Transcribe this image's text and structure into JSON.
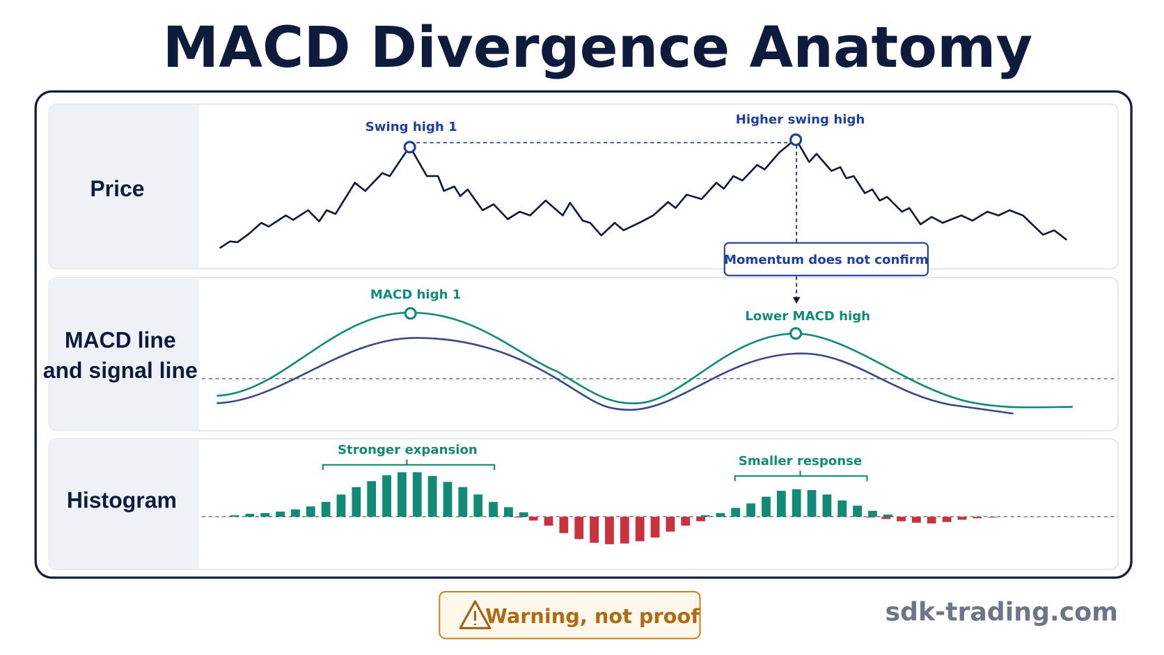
{
  "title": "MACD Divergence Anatomy",
  "panels": [
    {
      "label": "Price"
    },
    {
      "label_lines": [
        "MACD line",
        "and signal line"
      ]
    },
    {
      "label": "Histogram"
    }
  ],
  "annotations": {
    "swing_high_1": "Swing high 1",
    "higher_swing_high": "Higher swing high",
    "momentum_note": "Momentum does not confirm",
    "macd_high_1": "MACD high 1",
    "lower_macd_high": "Lower MACD high",
    "stronger_expansion": "Stronger expansion",
    "smaller_response": "Smaller response"
  },
  "footer": {
    "warning": "Warning, not proof",
    "site": "sdk-trading.com"
  }
}
